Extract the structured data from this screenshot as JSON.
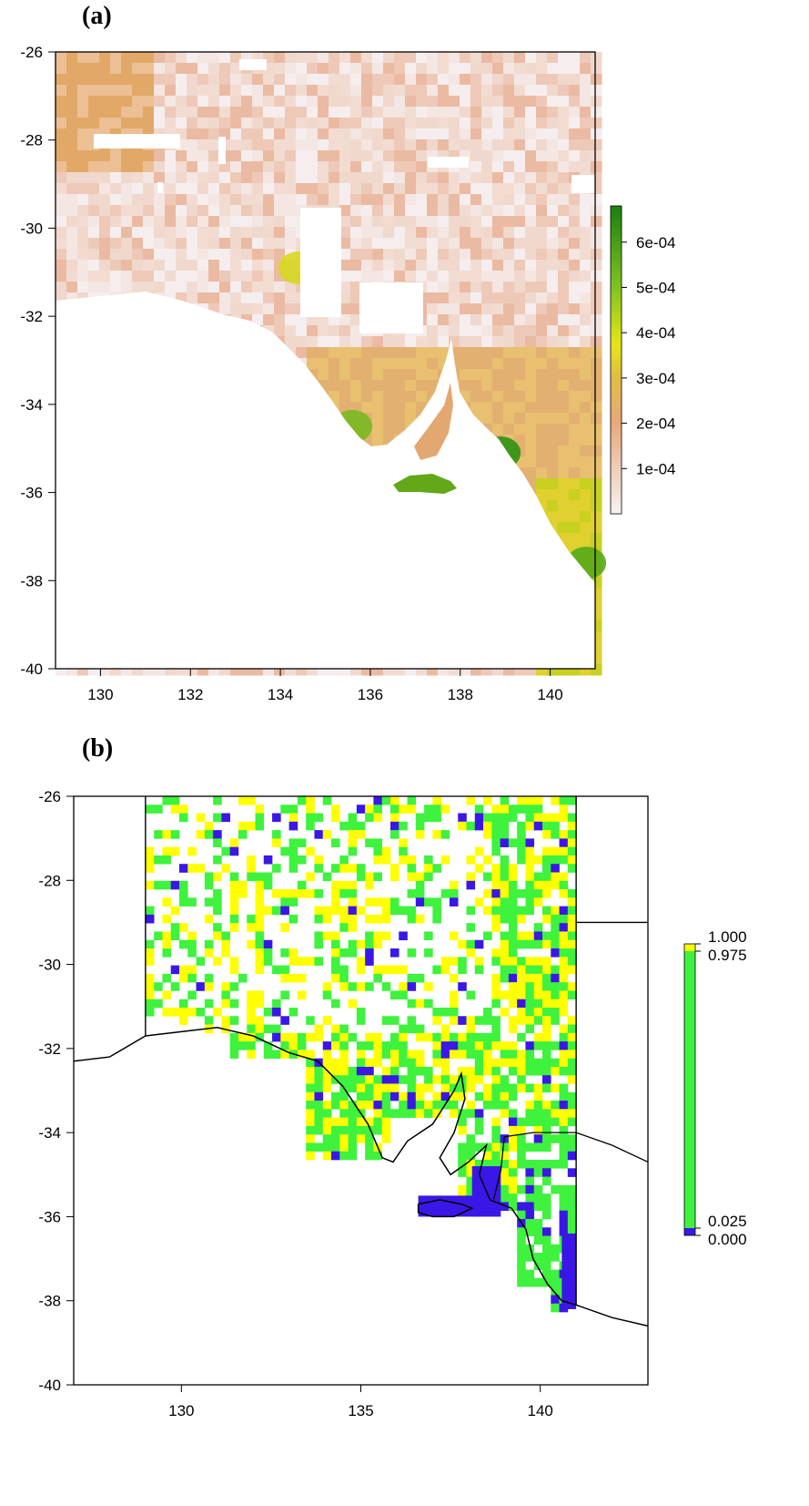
{
  "panels": [
    {
      "label": "(a)",
      "x_ticks": [
        "130",
        "132",
        "134",
        "136",
        "138",
        "140"
      ],
      "y_ticks": [
        "-26",
        "-28",
        "-30",
        "-32",
        "-34",
        "-36",
        "-38",
        "-40"
      ],
      "legend_ticks": [
        "6e-04",
        "5e-04",
        "4e-04",
        "3e-04",
        "2e-04",
        "1e-04"
      ],
      "colors": {
        "low": "#f4ecec",
        "mid": "#e8a070",
        "high": "#2d8a0f",
        "yellow": "#e6e619"
      }
    },
    {
      "label": "(b)",
      "x_ticks": [
        "130",
        "135",
        "140"
      ],
      "y_ticks": [
        "-26",
        "-28",
        "-30",
        "-32",
        "-34",
        "-36",
        "-38",
        "-40"
      ],
      "legend_ticks": [
        "1.000",
        "0.975",
        "0.025",
        "0.000"
      ],
      "colors": {
        "green": "#3ef23e",
        "yellow": "#ffff00",
        "blue": "#3a17e6"
      }
    }
  ],
  "chart_data": [
    {
      "type": "heatmap",
      "title": "(a)",
      "xlim": [
        129,
        141
      ],
      "ylim": [
        -40,
        -26
      ],
      "x_ticks": [
        130,
        132,
        134,
        136,
        138,
        140
      ],
      "y_ticks": [
        -26,
        -28,
        -30,
        -32,
        -34,
        -36,
        -38,
        -40
      ],
      "legend_range": [
        0,
        0.00068
      ],
      "legend_ticks": [
        0.0006,
        0.0005,
        0.0004,
        0.0003,
        0.0002,
        0.0001
      ]
    },
    {
      "type": "heatmap",
      "title": "(b)",
      "xlim": [
        127,
        143
      ],
      "ylim": [
        -40,
        -26
      ],
      "x_ticks": [
        130,
        135,
        140
      ],
      "y_ticks": [
        -26,
        -28,
        -30,
        -32,
        -34,
        -36,
        -38,
        -40
      ],
      "legend_breaks": [
        1.0,
        0.975,
        0.025,
        0.0
      ],
      "legend_classes": [
        "yellow",
        "green",
        "blue"
      ]
    }
  ]
}
